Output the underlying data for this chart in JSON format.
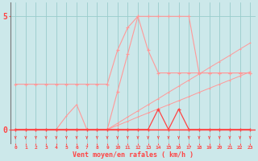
{
  "bg_color": "#cce8ea",
  "grid_color": "#99cccc",
  "lc_light": "#ff9999",
  "lc_dark": "#ff4444",
  "xlabel": "Vent moyen/en rafales ( km/h )",
  "xlim": [
    -0.5,
    23.5
  ],
  "ylim": [
    -0.6,
    5.6
  ],
  "yticks": [
    0,
    5
  ],
  "xticks": [
    0,
    1,
    2,
    3,
    4,
    5,
    6,
    7,
    8,
    9,
    10,
    11,
    12,
    13,
    14,
    15,
    16,
    17,
    18,
    19,
    20,
    21,
    22,
    23
  ],
  "line_big_x": [
    0,
    1,
    2,
    3,
    4,
    5,
    6,
    7,
    8,
    9,
    10,
    11,
    12,
    13,
    14,
    15,
    16,
    17,
    18,
    19,
    20,
    21,
    22,
    23
  ],
  "line_big_y": [
    2.0,
    2.0,
    2.0,
    2.0,
    2.0,
    2.0,
    2.0,
    2.0,
    2.0,
    2.0,
    3.5,
    4.5,
    5.0,
    5.0,
    5.0,
    5.0,
    5.0,
    5.0,
    2.5,
    2.5,
    2.5,
    2.5,
    2.5,
    2.5
  ],
  "line_diag_x": [
    0,
    1,
    2,
    3,
    4,
    5,
    6,
    7,
    8,
    9,
    10,
    11,
    12,
    13,
    14,
    15,
    16,
    17,
    18,
    19,
    20,
    21,
    22,
    23
  ],
  "line_diag_y": [
    0.0,
    0.0,
    0.0,
    0.0,
    0.0,
    0.0,
    0.0,
    0.0,
    0.0,
    0.0,
    1.67,
    3.33,
    5.0,
    3.5,
    2.5,
    2.5,
    2.5,
    2.5,
    2.5,
    2.5,
    2.5,
    2.5,
    2.5,
    2.5
  ],
  "line_rise1_x": [
    0,
    1,
    2,
    3,
    4,
    5,
    6,
    7,
    8,
    9,
    10,
    11,
    12,
    13,
    14,
    15,
    16,
    17,
    18,
    19,
    20,
    21,
    22,
    23
  ],
  "line_rise1_y": [
    0.0,
    0.0,
    0.0,
    0.0,
    0.0,
    0.0,
    0.0,
    0.0,
    0.0,
    0.0,
    0.18,
    0.36,
    0.55,
    0.73,
    0.91,
    1.09,
    1.27,
    1.45,
    1.64,
    1.82,
    2.0,
    2.18,
    2.36,
    2.55
  ],
  "line_rise2_x": [
    0,
    1,
    2,
    3,
    4,
    5,
    6,
    7,
    8,
    9,
    10,
    11,
    12,
    13,
    14,
    15,
    16,
    17,
    18,
    19,
    20,
    21,
    22,
    23
  ],
  "line_rise2_y": [
    0.0,
    0.0,
    0.0,
    0.0,
    0.0,
    0.0,
    0.0,
    0.0,
    0.0,
    0.0,
    0.27,
    0.55,
    0.82,
    1.09,
    1.36,
    1.64,
    1.91,
    2.18,
    2.45,
    2.73,
    3.0,
    3.27,
    3.55,
    3.82
  ],
  "line_spike_x": [
    0,
    1,
    2,
    3,
    4,
    5,
    6,
    7,
    8,
    9,
    10,
    11,
    12,
    13,
    14,
    15,
    16,
    17,
    18,
    19,
    20,
    21,
    22,
    23
  ],
  "line_spike_y": [
    0,
    0,
    0,
    0,
    0,
    0,
    0,
    0,
    0,
    0,
    0,
    0,
    0,
    0,
    0.9,
    0,
    0.9,
    0,
    0,
    0,
    0,
    0,
    0,
    0
  ],
  "line_hump_x": [
    0,
    1,
    2,
    3,
    4,
    5,
    6,
    7,
    8,
    9,
    10,
    11,
    12,
    13,
    14,
    15,
    16,
    17,
    18,
    19,
    20,
    21,
    22,
    23
  ],
  "line_hump_y": [
    0,
    0,
    0,
    0,
    0,
    0.6,
    1.1,
    0,
    0,
    0,
    0,
    0,
    0,
    0,
    0,
    0,
    0,
    0,
    0,
    0,
    0,
    0,
    0,
    0
  ]
}
